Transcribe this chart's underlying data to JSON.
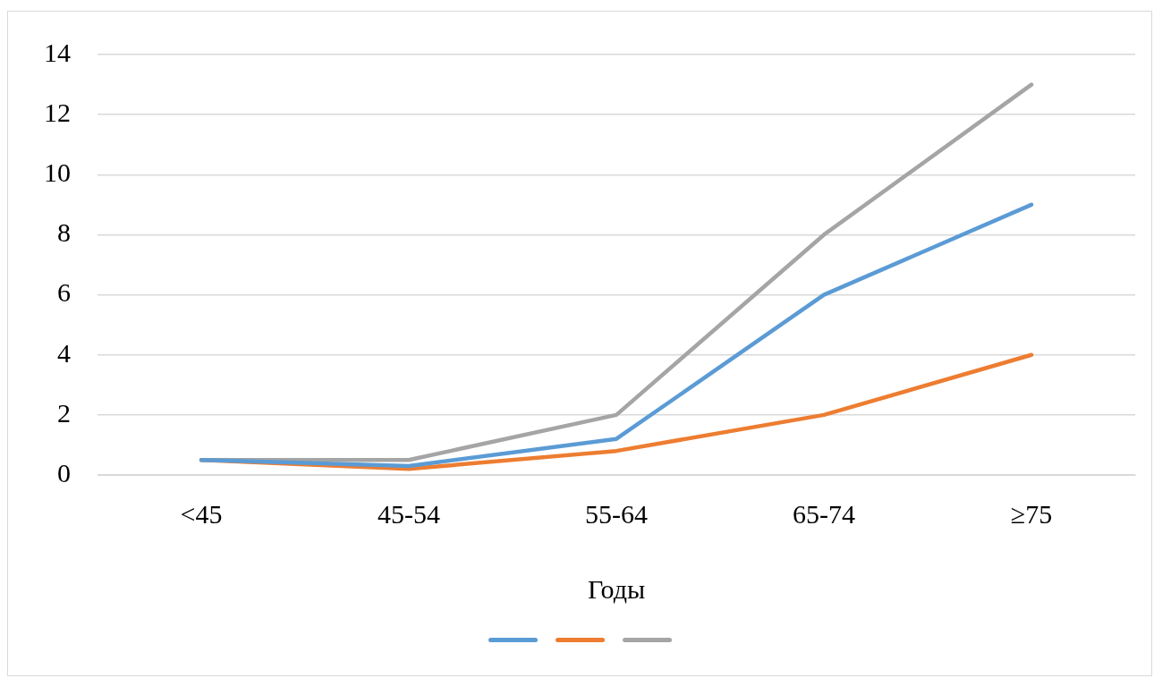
{
  "chart_data": {
    "type": "line",
    "xlabel": "Годы",
    "categories": [
      "<45",
      "45-54",
      "55-64",
      "65-74",
      "≥75"
    ],
    "series": [
      {
        "color": "#5b9bd5",
        "values": [
          0.5,
          0.3,
          1.2,
          6,
          9
        ]
      },
      {
        "color": "#ed7d31",
        "values": [
          0.5,
          0.2,
          0.8,
          2,
          4
        ]
      },
      {
        "color": "#a5a5a5",
        "values": [
          0.5,
          0.5,
          2,
          8,
          13
        ]
      }
    ],
    "ylim": [
      0,
      14
    ],
    "yticks": [
      0,
      2,
      4,
      6,
      8,
      10,
      12,
      14
    ],
    "grid": "y",
    "marker": "none",
    "line_style": "solid"
  }
}
